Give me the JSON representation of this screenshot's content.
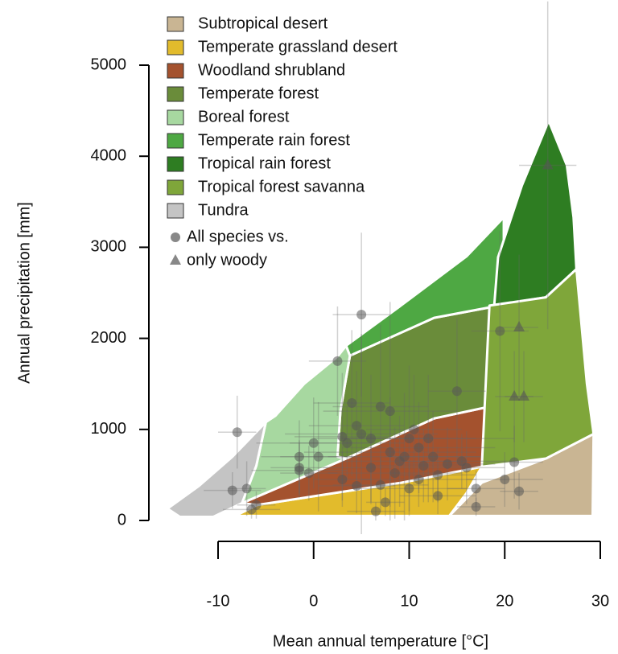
{
  "chart_data": {
    "type": "scatter",
    "xlabel": "Mean annual temperature [°C]",
    "ylabel": "Annual precipitation [mm]",
    "xlim": [
      -10,
      30
    ],
    "ylim": [
      0,
      5000
    ],
    "xticks": [
      -10,
      0,
      10,
      20,
      30
    ],
    "yticks": [
      0,
      1000,
      2000,
      3000,
      4000,
      5000
    ],
    "biomes": [
      {
        "name": "Subtropical desert",
        "color": "#c9b593",
        "x": [
          14.2,
          17.6,
          24.3,
          29.3,
          29.2
        ],
        "y": [
          50,
          415,
          680,
          950,
          50
        ]
      },
      {
        "name": "Temperate grassland desert",
        "color": "#e2bb2c",
        "x": [
          -8.2,
          -5.9,
          9.2,
          17.6,
          16,
          14.2,
          -8.5
        ],
        "y": [
          50,
          170,
          415,
          590,
          300,
          50,
          50
        ]
      },
      {
        "name": "Woodland shrubland",
        "color": "#a4522e",
        "x": [
          -7.5,
          3.4,
          12.6,
          18.4,
          17.6,
          9.2,
          -5.9
        ],
        "y": [
          190,
          680,
          1120,
          1250,
          590,
          415,
          170
        ]
      },
      {
        "name": "Temperate forest",
        "color": "#6a8c3a",
        "x": [
          3.8,
          12.6,
          18.4,
          18.4,
          12.6,
          3.4,
          2.5,
          2.8
        ],
        "y": [
          1810,
          2225,
          2340,
          1250,
          1120,
          680,
          700,
          1200
        ]
      },
      {
        "name": "Boreal forest",
        "color": "#a7d8a0",
        "x": [
          -5,
          -4,
          -1,
          2.5,
          3.4,
          3.8,
          2.8,
          2.5,
          3.4,
          -7.5,
          -6
        ],
        "y": [
          1080,
          1150,
          1500,
          1800,
          1920,
          1810,
          1200,
          700,
          680,
          190,
          600
        ]
      },
      {
        "name": "Temperate rain forest",
        "color": "#4ea843",
        "x": [
          3.4,
          9,
          16,
          19.9,
          19.9,
          18.4,
          12.6,
          3.8
        ],
        "y": [
          1920,
          2350,
          2900,
          3330,
          2370,
          2340,
          2225,
          1810
        ]
      },
      {
        "name": "Tropical rain forest",
        "color": "#2e7d22",
        "x": [
          19.3,
          21.8,
          24.6,
          26.5,
          27.2,
          27.5,
          24.3,
          18.9
        ],
        "y": [
          2890,
          3680,
          4390,
          3900,
          3330,
          2760,
          2450,
          2360
        ]
      },
      {
        "name": "Tropical forest savanna",
        "color": "#7fa63a",
        "x": [
          18.4,
          24.3,
          27.5,
          28.6,
          29.3,
          24.3,
          17.6
        ],
        "y": [
          2360,
          2450,
          2760,
          1500,
          950,
          680,
          590
        ]
      },
      {
        "name": "Tundra",
        "color": "#c4c4c4",
        "x": [
          -15.3,
          -12,
          -8.5,
          -5,
          -6,
          -7.5,
          -10.5,
          -14
        ],
        "y": [
          130,
          380,
          700,
          1080,
          600,
          190,
          40,
          40
        ]
      }
    ],
    "series": [
      {
        "name": "All species vs.",
        "marker": "circle",
        "color": "#555555",
        "x": [
          -8,
          -8.5,
          -7,
          -6.5,
          -6,
          -1.5,
          -1.5,
          -1.5,
          0,
          -0.5,
          0.5,
          2.5,
          3,
          3.5,
          4,
          4.5,
          5,
          5,
          6,
          7,
          8,
          8,
          9,
          9.5,
          10,
          10.5,
          11,
          11.5,
          12,
          12.5,
          13,
          14,
          15,
          15.5,
          16,
          17,
          17,
          19.5,
          20,
          21,
          21.5,
          6.5,
          7.5,
          6,
          8.5,
          11,
          4.5,
          3,
          7,
          10,
          13
        ],
        "y": [
          970,
          330,
          350,
          120,
          170,
          700,
          580,
          550,
          850,
          520,
          700,
          1750,
          920,
          850,
          1290,
          1040,
          2260,
          950,
          900,
          1250,
          1200,
          750,
          650,
          700,
          900,
          1000,
          800,
          600,
          900,
          700,
          500,
          620,
          1420,
          650,
          580,
          350,
          150,
          2080,
          450,
          640,
          320,
          100,
          200,
          580,
          520,
          450,
          380,
          450,
          390,
          350,
          270
        ],
        "xerr": [
          2,
          3,
          2,
          3,
          2,
          4,
          3,
          5,
          6,
          3,
          4,
          3,
          5,
          6,
          4,
          5,
          3,
          8,
          6,
          5,
          7,
          9,
          6,
          8,
          7,
          5,
          8,
          6,
          9,
          5,
          4,
          5,
          3,
          6,
          4,
          3,
          2,
          3,
          4,
          3,
          2,
          3,
          2,
          5,
          7,
          6,
          4,
          3,
          5,
          6,
          4
        ],
        "yerr": [
          400,
          200,
          300,
          100,
          150,
          400,
          300,
          300,
          500,
          300,
          600,
          600,
          700,
          400,
          800,
          600,
          900,
          1100,
          700,
          900,
          1200,
          600,
          500,
          700,
          800,
          600,
          500,
          400,
          700,
          500,
          300,
          400,
          800,
          300,
          400,
          200,
          100,
          1100,
          300,
          400,
          200,
          100,
          150,
          400,
          500,
          300,
          300,
          300,
          300,
          300,
          200
        ]
      },
      {
        "name": "only woody",
        "marker": "triangle",
        "color": "#555555",
        "x": [
          24.5,
          21.5,
          21,
          22
        ],
        "y": [
          3900,
          2120,
          1360,
          1360
        ],
        "xerr": [
          3,
          2,
          2,
          2
        ],
        "yerr": [
          1800,
          800,
          500,
          500
        ]
      }
    ]
  }
}
